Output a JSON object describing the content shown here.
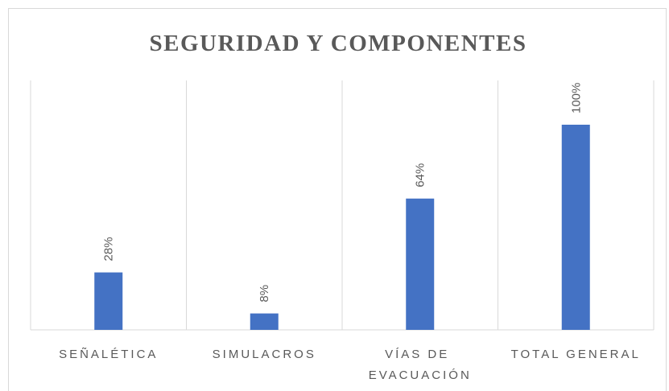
{
  "chart_data": {
    "type": "bar",
    "title": "SEGURIDAD Y COMPONENTES",
    "categories": [
      "SEÑALÉTICA",
      "SIMULACROS",
      "VÍAS DE EVACUACIÓN",
      "TOTAL GENERAL"
    ],
    "values": [
      28,
      8,
      64,
      100
    ],
    "value_labels": [
      "28%",
      "8%",
      "64%",
      "100%"
    ],
    "color": "#4472c4",
    "ylim": [
      0,
      100
    ]
  }
}
